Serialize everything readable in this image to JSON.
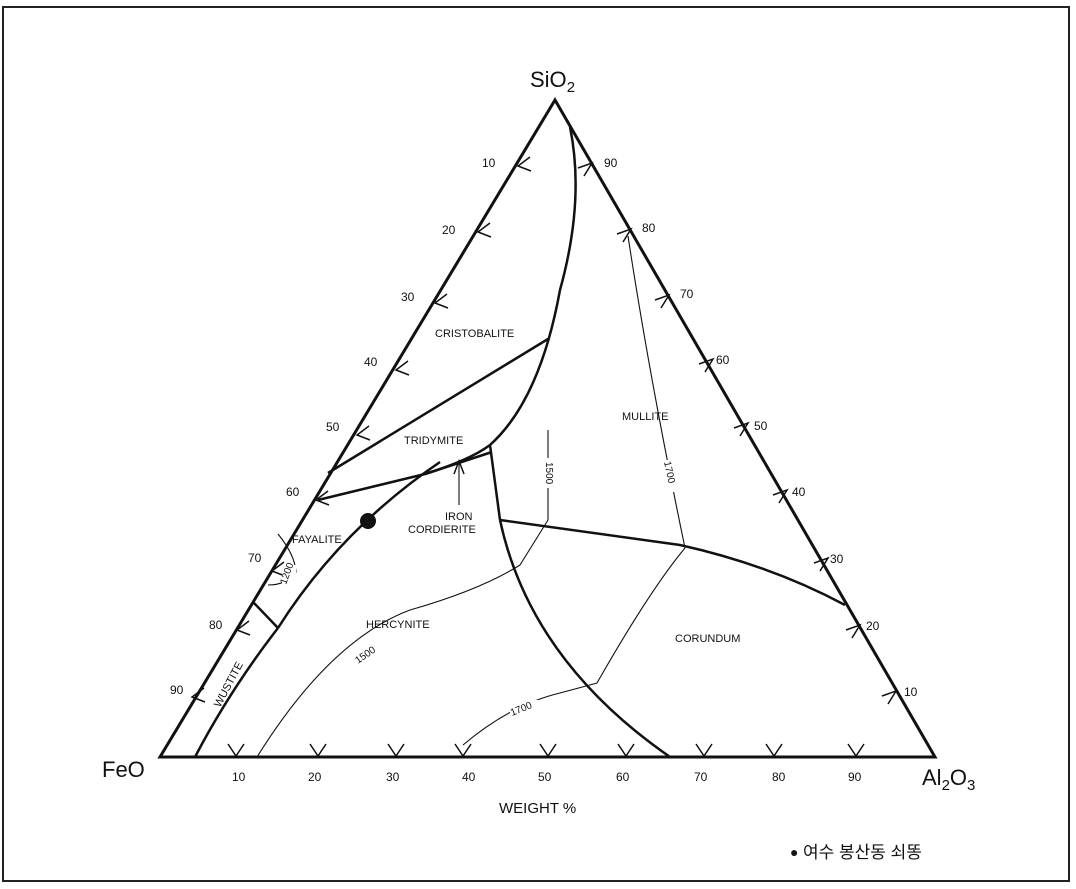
{
  "diagram": {
    "vertices": {
      "top": "SiO",
      "top_sub": "2",
      "left": "FeO",
      "right_a": "Al",
      "right_sub1": "2",
      "right_b": "O",
      "right_sub2": "3"
    },
    "axis_label": "WEIGHT %",
    "ticks": {
      "bottom": [
        "10",
        "20",
        "30",
        "40",
        "50",
        "60",
        "70",
        "80",
        "90"
      ],
      "left": [
        "10",
        "20",
        "30",
        "40",
        "50",
        "60",
        "70",
        "80",
        "90"
      ],
      "right": [
        "90",
        "80",
        "70",
        "60",
        "50",
        "40",
        "30",
        "20",
        "10"
      ]
    },
    "fields": {
      "cristobalite": "CRISTOBALITE",
      "tridymite": "TRIDYMITE",
      "mullite": "MULLITE",
      "iron": "IRON",
      "cordierite": "CORDIERITE",
      "fayalite": "FAYALITE",
      "hercynite": "HERCYNITE",
      "corundum": "CORUNDUM",
      "wustite": "WUSTITE"
    },
    "isotherms": {
      "t1500a": "1500",
      "t1700a": "1700",
      "t1200": "1200",
      "t1500b": "1500",
      "t1700b": "1700"
    },
    "legend": {
      "marker": "●",
      "text": "여수 봉산동 쇠똥"
    }
  }
}
